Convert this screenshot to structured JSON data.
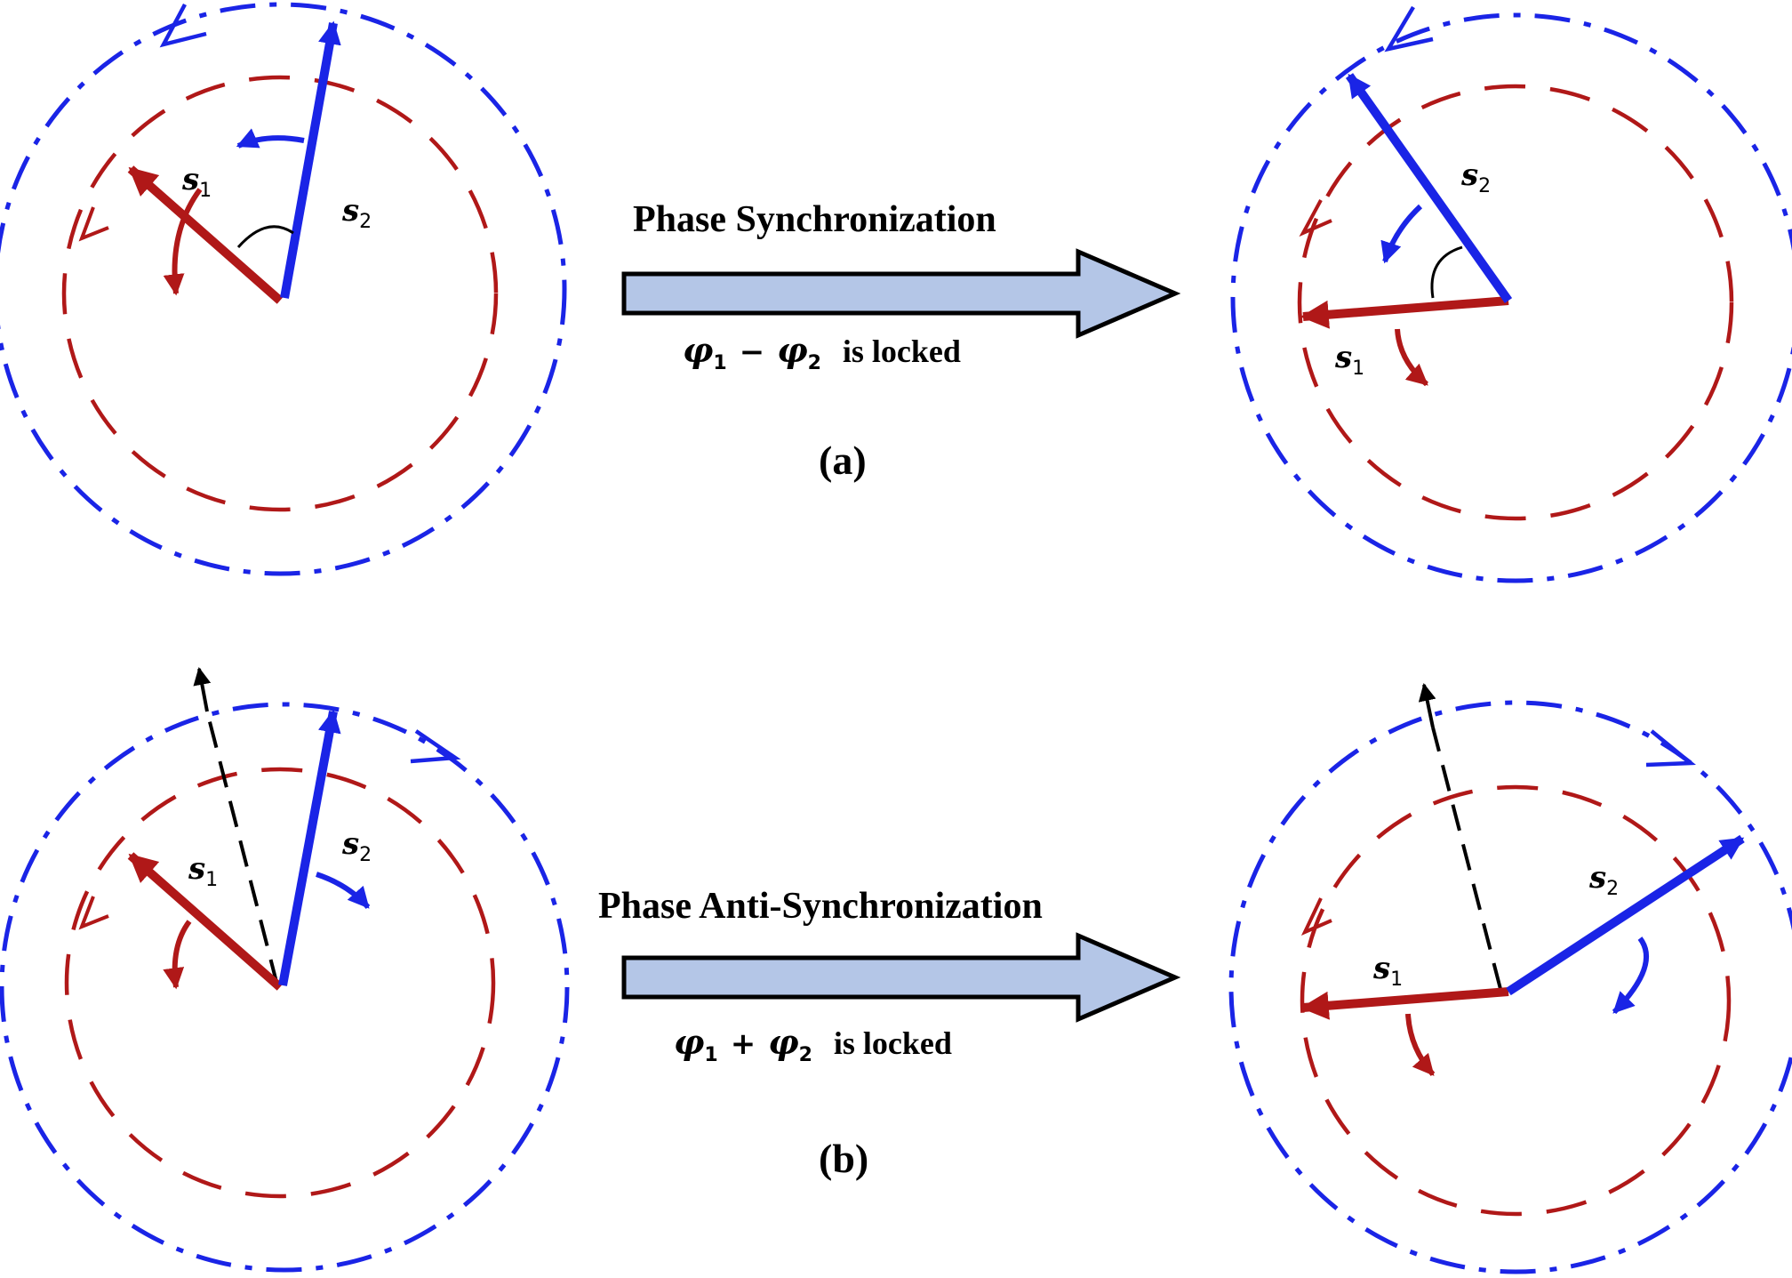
{
  "colors": {
    "red": "#b01818",
    "blue": "#1a24e6",
    "arrow_fill": "#b4c6e7",
    "black": "#000000"
  },
  "panel_a": {
    "transition_text": "Phase Synchronization",
    "locked_phi1": "φ",
    "locked_sub1": "1",
    "locked_op": "−",
    "locked_phi2": "φ",
    "locked_sub2": "2",
    "locked_suffix": "is locked",
    "label": "(a)"
  },
  "panel_b": {
    "transition_text": "Phase Anti-Synchronization",
    "locked_phi1": "φ",
    "locked_sub1": "1",
    "locked_op": "+",
    "locked_phi2": "φ",
    "locked_sub2": "2",
    "locked_suffix": "is locked",
    "label": "(b)"
  },
  "vectors": {
    "s": "s",
    "sub1": "1",
    "sub2": "2"
  }
}
